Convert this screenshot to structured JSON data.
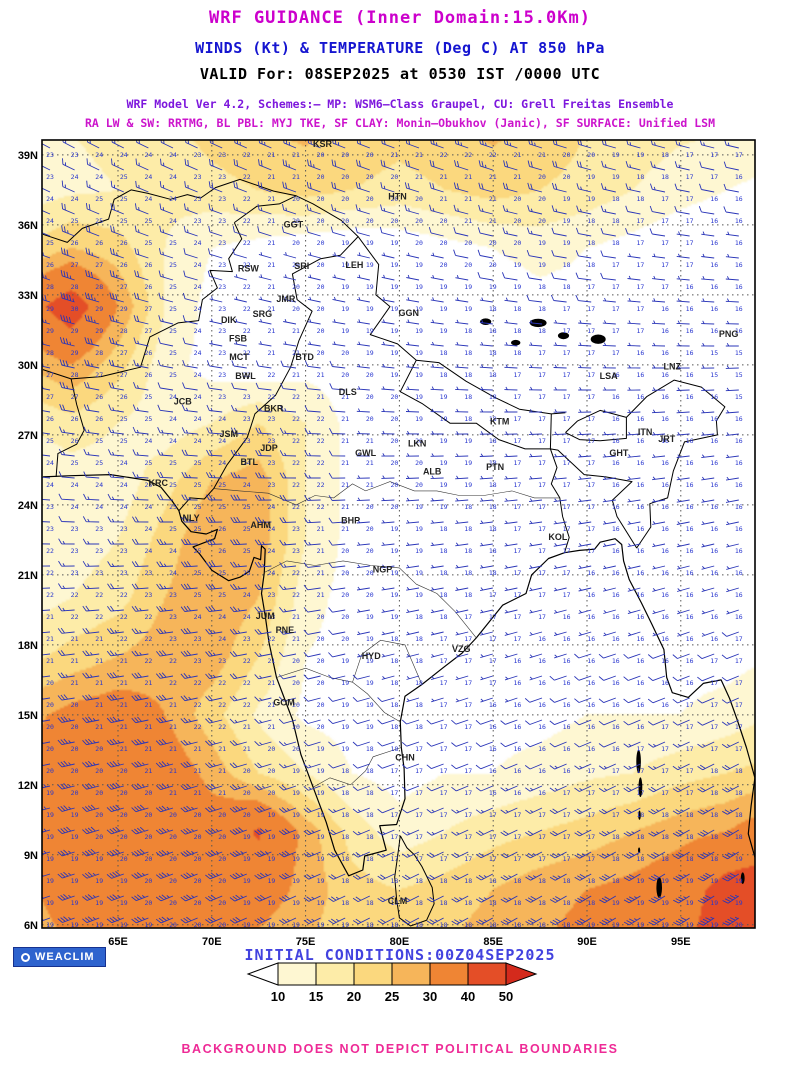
{
  "header": {
    "title": "WRF GUIDANCE (Inner Domain:15.0Km)",
    "subtitle": "WINDS (Kt) & TEMPERATURE (Deg C) AT 850 hPa",
    "valid_line": "VALID For: 08SEP2025 at 0530 IST /0000 UTC",
    "scheme_line1": "WRF Model Ver 4.2, Schemes:– MP: WSM6–Class Graupel, CU: Grell Freitas Ensemble",
    "scheme_line2": "RA LW & SW: RRTMG, BL PBL: MYJ TKE, SF CLAY: Monin–Obukhov (Janic), SF SURFACE: Unified LSM",
    "palette": {
      "title": "#CC00CC",
      "subtitle": "#1515D0",
      "valid": "#000000",
      "scheme1": "#7D17DD",
      "scheme2": "#CC14CC"
    }
  },
  "map": {
    "lat_labels": [
      "39N",
      "36N",
      "33N",
      "30N",
      "27N",
      "24N",
      "21N",
      "18N",
      "15N",
      "12N",
      "9N",
      "6N"
    ],
    "lat_values": [
      39,
      36,
      33,
      30,
      27,
      24,
      21,
      18,
      15,
      12,
      9,
      6
    ],
    "lon_labels": [
      "65E",
      "70E",
      "75E",
      "80E",
      "85E",
      "90E",
      "95E"
    ],
    "lon_values": [
      65,
      70,
      75,
      80,
      85,
      90,
      95
    ],
    "stations": [
      {
        "id": "KSR",
        "lon": 75.9,
        "lat": 39.35
      },
      {
        "id": "HTN",
        "lon": 79.9,
        "lat": 37.1
      },
      {
        "id": "GGT",
        "lon": 74.35,
        "lat": 35.9
      },
      {
        "id": "SRI",
        "lon": 74.8,
        "lat": 34.1
      },
      {
        "id": "LEH",
        "lon": 77.6,
        "lat": 34.15
      },
      {
        "id": "RSW",
        "lon": 71.95,
        "lat": 34.0
      },
      {
        "id": "JMR",
        "lon": 73.95,
        "lat": 32.7
      },
      {
        "id": "SRG",
        "lon": 72.7,
        "lat": 32.05
      },
      {
        "id": "GGN",
        "lon": 80.5,
        "lat": 32.1
      },
      {
        "id": "DIK",
        "lon": 70.9,
        "lat": 31.8
      },
      {
        "id": "FSB",
        "lon": 71.4,
        "lat": 31.0
      },
      {
        "id": "MCT",
        "lon": 71.45,
        "lat": 30.2
      },
      {
        "id": "BTD",
        "lon": 74.95,
        "lat": 30.2
      },
      {
        "id": "BWL",
        "lon": 71.8,
        "lat": 29.4
      },
      {
        "id": "DLS",
        "lon": 77.25,
        "lat": 28.7
      },
      {
        "id": "LSA",
        "lon": 91.15,
        "lat": 29.4
      },
      {
        "id": "LNZ",
        "lon": 94.55,
        "lat": 29.8
      },
      {
        "id": "PNG",
        "lon": 97.55,
        "lat": 31.2
      },
      {
        "id": "JCB",
        "lon": 68.45,
        "lat": 28.3
      },
      {
        "id": "BKR",
        "lon": 73.3,
        "lat": 28.0
      },
      {
        "id": "KTM",
        "lon": 85.35,
        "lat": 27.45
      },
      {
        "id": "JSM",
        "lon": 70.9,
        "lat": 26.9
      },
      {
        "id": "JDP",
        "lon": 73.05,
        "lat": 26.3
      },
      {
        "id": "LKN",
        "lon": 80.95,
        "lat": 26.5
      },
      {
        "id": "GWL",
        "lon": 78.2,
        "lat": 26.1
      },
      {
        "id": "ITN",
        "lon": 93.1,
        "lat": 27.0
      },
      {
        "id": "JRT",
        "lon": 94.25,
        "lat": 26.7
      },
      {
        "id": "GHT",
        "lon": 91.7,
        "lat": 26.1
      },
      {
        "id": "BTL",
        "lon": 72.0,
        "lat": 25.7
      },
      {
        "id": "ALB",
        "lon": 81.75,
        "lat": 25.3
      },
      {
        "id": "PTN",
        "lon": 85.1,
        "lat": 25.5
      },
      {
        "id": "KRC",
        "lon": 67.15,
        "lat": 24.8
      },
      {
        "id": "NLY",
        "lon": 68.9,
        "lat": 23.3
      },
      {
        "id": "AHM",
        "lon": 72.6,
        "lat": 23.0
      },
      {
        "id": "BHP",
        "lon": 77.4,
        "lat": 23.2
      },
      {
        "id": "KOL",
        "lon": 88.45,
        "lat": 22.5
      },
      {
        "id": "NGP",
        "lon": 79.1,
        "lat": 21.1
      },
      {
        "id": "JUM",
        "lon": 72.85,
        "lat": 19.1
      },
      {
        "id": "PNE",
        "lon": 73.9,
        "lat": 18.5
      },
      {
        "id": "HYD",
        "lon": 78.5,
        "lat": 17.4
      },
      {
        "id": "VZG",
        "lon": 83.3,
        "lat": 17.7
      },
      {
        "id": "GOM",
        "lon": 73.85,
        "lat": 15.4
      },
      {
        "id": "CHN",
        "lon": 80.3,
        "lat": 13.05
      },
      {
        "id": "CLM",
        "lon": 79.9,
        "lat": 6.9
      }
    ]
  },
  "footer": {
    "logo_text": "WEACLIM",
    "initial_conditions": "INITIAL CONDITIONS:00Z04SEP2025",
    "disclaimer": "BACKGROUND DOES NOT DEPICT POLITICAL BOUNDARIES",
    "colorbar": {
      "tick_labels": [
        "10",
        "15",
        "20",
        "25",
        "30",
        "40",
        "50"
      ]
    }
  },
  "chart_data": {
    "type": "heatmap",
    "title": "WRF 850 hPa winds (kt, shaded + barbs) and temperature (deg C, point values)",
    "fill_field": "wind_speed_kt",
    "point_field": "temperature_c",
    "lon_range": [
      61,
      99
    ],
    "lat_range": [
      6,
      39.6
    ],
    "lons": [
      60,
      62.5,
      65,
      67.5,
      70,
      72.5,
      75,
      77.5,
      80,
      82.5,
      85,
      87.5,
      90,
      92.5,
      95,
      97.5,
      100
    ],
    "lats": [
      40,
      37.5,
      35,
      32.5,
      30,
      27.5,
      25,
      22.5,
      20,
      17.5,
      15,
      12.5,
      10,
      7.5,
      5
    ],
    "wind_speed_kt": [
      [
        14,
        15,
        16,
        18,
        22,
        25,
        26,
        24,
        22,
        24,
        26,
        24,
        20,
        18,
        16,
        15,
        14
      ],
      [
        12,
        14,
        15,
        16,
        18,
        20,
        22,
        20,
        18,
        20,
        22,
        20,
        18,
        15,
        12,
        10,
        8
      ],
      [
        20,
        25,
        22,
        15,
        10,
        8,
        6,
        5,
        6,
        8,
        10,
        12,
        10,
        8,
        6,
        5,
        5
      ],
      [
        35,
        46,
        30,
        15,
        8,
        5,
        5,
        5,
        5,
        5,
        6,
        8,
        8,
        6,
        5,
        5,
        5
      ],
      [
        25,
        30,
        22,
        12,
        8,
        6,
        8,
        8,
        6,
        5,
        5,
        5,
        6,
        5,
        5,
        5,
        5
      ],
      [
        15,
        18,
        15,
        12,
        15,
        20,
        15,
        8,
        5,
        5,
        5,
        5,
        5,
        5,
        5,
        5,
        5
      ],
      [
        10,
        12,
        12,
        18,
        25,
        28,
        15,
        8,
        5,
        5,
        5,
        5,
        5,
        5,
        5,
        5,
        5
      ],
      [
        10,
        12,
        15,
        22,
        30,
        28,
        15,
        8,
        6,
        5,
        5,
        5,
        6,
        6,
        5,
        5,
        5
      ],
      [
        12,
        15,
        18,
        25,
        30,
        25,
        12,
        8,
        6,
        5,
        5,
        6,
        6,
        6,
        6,
        6,
        8
      ],
      [
        18,
        22,
        25,
        28,
        28,
        20,
        10,
        8,
        6,
        5,
        5,
        6,
        8,
        8,
        8,
        8,
        10
      ],
      [
        28,
        32,
        34,
        30,
        22,
        14,
        9,
        8,
        8,
        8,
        8,
        8,
        10,
        10,
        10,
        12,
        15
      ],
      [
        30,
        35,
        38,
        35,
        28,
        20,
        15,
        10,
        8,
        10,
        10,
        12,
        14,
        15,
        18,
        20,
        22
      ],
      [
        30,
        38,
        40,
        38,
        34,
        41,
        28,
        18,
        12,
        15,
        18,
        20,
        22,
        25,
        28,
        30,
        35
      ],
      [
        28,
        35,
        38,
        36,
        32,
        34,
        28,
        22,
        20,
        22,
        25,
        28,
        30,
        32,
        35,
        44,
        46
      ],
      [
        25,
        30,
        34,
        34,
        30,
        28,
        25,
        22,
        22,
        25,
        28,
        30,
        32,
        35,
        38,
        46,
        50
      ]
    ],
    "wind_dir_deg": [
      [
        300,
        299,
        298,
        297,
        296,
        295,
        294,
        293,
        292,
        291,
        290,
        289,
        288,
        287,
        286,
        285,
        284
      ],
      [
        296,
        295,
        294,
        293,
        292,
        291,
        290,
        289,
        288,
        287,
        286,
        285,
        284,
        283,
        282,
        281,
        280
      ],
      [
        292,
        291,
        290,
        289,
        288,
        287,
        286,
        285,
        284,
        283,
        282,
        281,
        280,
        279,
        278,
        277,
        276
      ],
      [
        288,
        287,
        286,
        285,
        284,
        283,
        282,
        281,
        280,
        279,
        278,
        277,
        276,
        275,
        274,
        273,
        272
      ],
      [
        284,
        283,
        282,
        281,
        280,
        279,
        278,
        277,
        276,
        275,
        274,
        273,
        272,
        271,
        270,
        269,
        268
      ],
      [
        280,
        279,
        278,
        277,
        276,
        275,
        274,
        273,
        272,
        271,
        270,
        269,
        268,
        267,
        266,
        265,
        264
      ],
      [
        276,
        275,
        274,
        273,
        272,
        271,
        270,
        269,
        268,
        267,
        266,
        265,
        264,
        263,
        262,
        261,
        260
      ],
      [
        272,
        271,
        270,
        269,
        268,
        267,
        266,
        265,
        264,
        263,
        262,
        261,
        260,
        259,
        258,
        257,
        256
      ],
      [
        268,
        267,
        266,
        265,
        264,
        263,
        262,
        261,
        260,
        259,
        258,
        257,
        256,
        255,
        254,
        253,
        252
      ],
      [
        264,
        263,
        262,
        261,
        260,
        259,
        258,
        257,
        256,
        255,
        254,
        253,
        252,
        251,
        250,
        249,
        248
      ],
      [
        261,
        260,
        259,
        258,
        257,
        256,
        255,
        254,
        253,
        252,
        251,
        250,
        249,
        248,
        247,
        246,
        245
      ],
      [
        258,
        257,
        256,
        255,
        254,
        253,
        252,
        251,
        250,
        249,
        248,
        247,
        246,
        245,
        244,
        243,
        242
      ],
      [
        255,
        254,
        253,
        252,
        251,
        250,
        249,
        248,
        247,
        246,
        245,
        244,
        243,
        242,
        241,
        240,
        239
      ],
      [
        252,
        251,
        250,
        249,
        248,
        247,
        246,
        245,
        244,
        243,
        242,
        241,
        240,
        239,
        238,
        237,
        236
      ],
      [
        250,
        249,
        248,
        247,
        246,
        245,
        244,
        243,
        242,
        241,
        240,
        239,
        238,
        237,
        236,
        235,
        234
      ]
    ],
    "temperature_c": [
      [
        22,
        23,
        24,
        24,
        23,
        22,
        21,
        20,
        21,
        22,
        22,
        21,
        20,
        19,
        18,
        17,
        16
      ],
      [
        23,
        24,
        25,
        24,
        23,
        21,
        20,
        20,
        20,
        21,
        21,
        20,
        19,
        18,
        17,
        16,
        16
      ],
      [
        25,
        26,
        26,
        25,
        23,
        21,
        20,
        19,
        19,
        20,
        20,
        19,
        18,
        17,
        17,
        16,
        16
      ],
      [
        28,
        30,
        29,
        26,
        23,
        21,
        20,
        19,
        19,
        19,
        18,
        18,
        17,
        17,
        16,
        16,
        15
      ],
      [
        27,
        28,
        27,
        25,
        23,
        22,
        21,
        20,
        19,
        18,
        18,
        17,
        17,
        16,
        16,
        15,
        15
      ],
      [
        25,
        26,
        25,
        24,
        24,
        23,
        22,
        21,
        20,
        19,
        18,
        17,
        17,
        16,
        16,
        16,
        15
      ],
      [
        23,
        24,
        24,
        25,
        25,
        24,
        22,
        21,
        20,
        19,
        18,
        17,
        17,
        16,
        16,
        16,
        16
      ],
      [
        22,
        23,
        23,
        24,
        26,
        25,
        22,
        20,
        19,
        18,
        18,
        17,
        17,
        16,
        16,
        16,
        16
      ],
      [
        21,
        22,
        22,
        23,
        25,
        24,
        21,
        20,
        19,
        18,
        17,
        17,
        16,
        16,
        16,
        16,
        16
      ],
      [
        20,
        21,
        21,
        22,
        23,
        22,
        20,
        19,
        18,
        17,
        17,
        16,
        16,
        16,
        16,
        17,
        17
      ],
      [
        20,
        20,
        21,
        21,
        22,
        21,
        20,
        19,
        18,
        17,
        16,
        16,
        16,
        16,
        17,
        17,
        17
      ],
      [
        19,
        20,
        20,
        21,
        21,
        20,
        19,
        18,
        17,
        17,
        16,
        16,
        17,
        17,
        17,
        18,
        18
      ],
      [
        19,
        19,
        20,
        20,
        20,
        19,
        19,
        18,
        17,
        17,
        17,
        17,
        17,
        18,
        18,
        18,
        19
      ],
      [
        19,
        19,
        19,
        20,
        20,
        19,
        19,
        18,
        18,
        18,
        18,
        18,
        18,
        19,
        19,
        19,
        19
      ],
      [
        19,
        19,
        19,
        19,
        20,
        19,
        19,
        19,
        18,
        18,
        18,
        18,
        19,
        19,
        19,
        20,
        20
      ]
    ],
    "speed_bands": [
      10,
      15,
      20,
      25,
      30,
      40,
      50
    ],
    "band_colors": [
      "#ffffff",
      "#fef7d2",
      "#fdeca8",
      "#fbd87e",
      "#f6b55a",
      "#ef8534",
      "#e44e27",
      "#d42a1c"
    ],
    "barb_color": "#2a35b8",
    "temp_text_color": "#2836cf",
    "legend_position": "bottom"
  }
}
